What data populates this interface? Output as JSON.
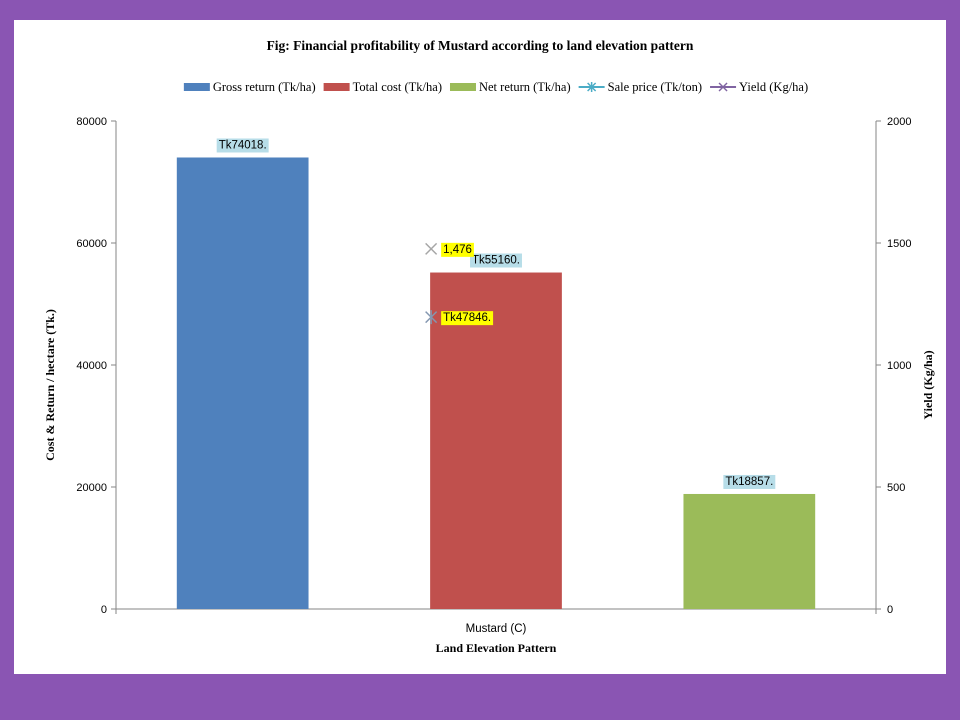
{
  "chart_data": {
    "type": "bar",
    "title": "Fig: Financial profitability of Mustard according to land elevation pattern",
    "xlabel": "Land Elevation Pattern",
    "ylabel": "Cost & Return / hectare (Tk.)",
    "y2label": "Yield (Kg/ha)",
    "categories": [
      "Mustard (C)"
    ],
    "ylim": [
      0,
      80000
    ],
    "yticks": [
      0,
      20000,
      40000,
      60000,
      80000
    ],
    "y2lim": [
      0,
      2000
    ],
    "y2ticks": [
      0,
      500,
      1000,
      1500,
      2000
    ],
    "grid": false,
    "legend_position": "top",
    "series": [
      {
        "name": "Gross return (Tk/ha)",
        "kind": "bar",
        "axis": "left",
        "values": [
          74018
        ],
        "label": "Tk74018.",
        "color": "#4f81bd",
        "label_bg": "#b7dde8"
      },
      {
        "name": "Total cost (Tk/ha)",
        "kind": "bar",
        "axis": "left",
        "values": [
          55160
        ],
        "label": "Tk55160.",
        "color": "#c0504d",
        "label_bg": "#b7dde8"
      },
      {
        "name": "Net return (Tk/ha)",
        "kind": "bar",
        "axis": "left",
        "values": [
          18857
        ],
        "label": "Tk18857.",
        "color": "#9bbb59",
        "label_bg": "#b7dde8"
      },
      {
        "name": "Sale price (Tk/ton)",
        "kind": "marker",
        "marker": "asterisk",
        "axis": "left",
        "values": [
          47846
        ],
        "label": "Tk47846.",
        "color": "#4bacc6",
        "marker_color": "#8497b0",
        "label_bg": "#ffff00"
      },
      {
        "name": "Yield (Kg/ha)",
        "kind": "marker",
        "marker": "x",
        "axis": "right",
        "values": [
          1476
        ],
        "label": "1,476",
        "color": "#8064a2",
        "marker_color": "#a6a6a6",
        "label_bg": "#ffff00"
      }
    ]
  }
}
